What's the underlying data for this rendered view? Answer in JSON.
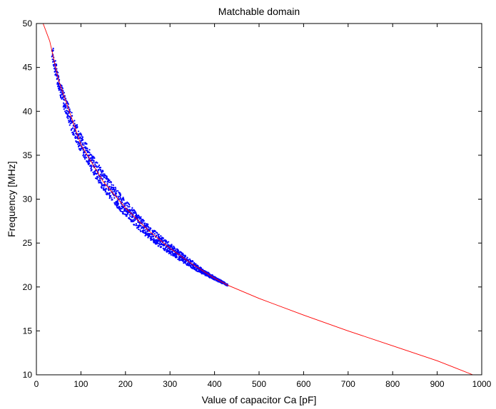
{
  "chart_data": {
    "type": "scatter",
    "title": "Matchable domain",
    "xlabel": "Value of capacitor Ca [pF]",
    "ylabel": "Frequency [MHz]",
    "xlim": [
      0,
      1000
    ],
    "ylim": [
      10,
      50
    ],
    "xticks": [
      "0",
      "100",
      "200",
      "300",
      "400",
      "500",
      "600",
      "700",
      "800",
      "900",
      "1000"
    ],
    "yticks": [
      "10",
      "15",
      "20",
      "25",
      "30",
      "35",
      "40",
      "45",
      "50"
    ],
    "grid": false,
    "legend": "none",
    "series": [
      {
        "kind": "scatter-band",
        "color": "#0000ff",
        "points": [
          {
            "x": 35,
            "f_low": 46.0,
            "f_high": 48.0
          },
          {
            "x": 40,
            "f_low": 44.5,
            "f_high": 46.5
          },
          {
            "x": 50,
            "f_low": 42.5,
            "f_high": 44.3
          },
          {
            "x": 60,
            "f_low": 40.5,
            "f_high": 42.5
          },
          {
            "x": 80,
            "f_low": 37.6,
            "f_high": 39.8
          },
          {
            "x": 100,
            "f_low": 35.3,
            "f_high": 37.5
          },
          {
            "x": 125,
            "f_low": 33.0,
            "f_high": 35.2
          },
          {
            "x": 150,
            "f_low": 31.0,
            "f_high": 33.2
          },
          {
            "x": 175,
            "f_low": 29.4,
            "f_high": 31.5
          },
          {
            "x": 200,
            "f_low": 28.0,
            "f_high": 29.9
          },
          {
            "x": 225,
            "f_low": 26.7,
            "f_high": 28.5
          },
          {
            "x": 250,
            "f_low": 25.6,
            "f_high": 27.2
          },
          {
            "x": 275,
            "f_low": 24.6,
            "f_high": 26.0
          },
          {
            "x": 300,
            "f_low": 23.7,
            "f_high": 25.0
          },
          {
            "x": 325,
            "f_low": 22.9,
            "f_high": 24.0
          },
          {
            "x": 350,
            "f_low": 22.1,
            "f_high": 23.0
          },
          {
            "x": 375,
            "f_low": 21.4,
            "f_high": 22.0
          },
          {
            "x": 400,
            "f_low": 20.8,
            "f_high": 21.2
          },
          {
            "x": 430,
            "f_low": 20.1,
            "f_high": 20.3
          }
        ]
      },
      {
        "kind": "line",
        "color": "#ff0000",
        "points": [
          {
            "x": 15,
            "y": 50.0
          },
          {
            "x": 30,
            "y": 48.0
          },
          {
            "x": 50,
            "y": 43.5
          },
          {
            "x": 100,
            "y": 36.2
          },
          {
            "x": 150,
            "y": 32.0
          },
          {
            "x": 200,
            "y": 29.0
          },
          {
            "x": 250,
            "y": 26.5
          },
          {
            "x": 300,
            "y": 24.4
          },
          {
            "x": 350,
            "y": 22.6
          },
          {
            "x": 400,
            "y": 21.0
          },
          {
            "x": 430,
            "y": 20.2
          },
          {
            "x": 500,
            "y": 18.7
          },
          {
            "x": 600,
            "y": 16.8
          },
          {
            "x": 700,
            "y": 15.0
          },
          {
            "x": 800,
            "y": 13.3
          },
          {
            "x": 900,
            "y": 11.6
          },
          {
            "x": 980,
            "y": 10.0
          }
        ]
      }
    ]
  }
}
